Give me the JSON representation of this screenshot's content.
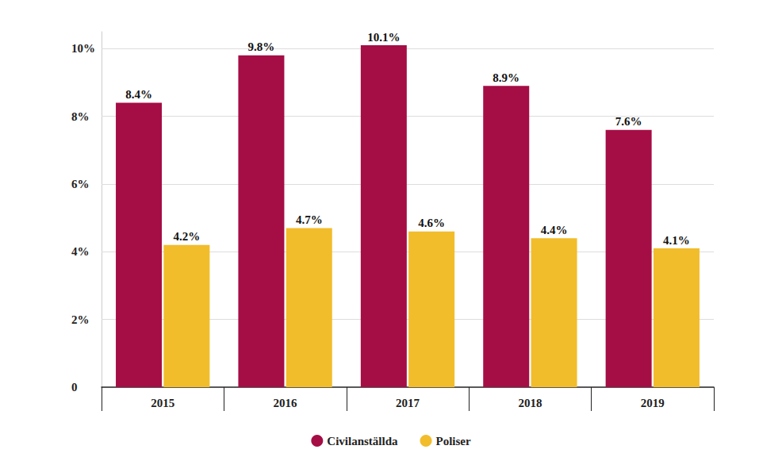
{
  "chart_data": {
    "type": "bar",
    "categories": [
      "2015",
      "2016",
      "2017",
      "2018",
      "2019"
    ],
    "series": [
      {
        "name": "Civilanställda",
        "color": "#a50d45",
        "values": [
          8.4,
          9.8,
          10.1,
          8.9,
          7.6
        ],
        "value_labels": [
          "8.4%",
          "9.8%",
          "10.1%",
          "8.9%",
          "7.6%"
        ]
      },
      {
        "name": "Poliser",
        "color": "#f2bd2b",
        "values": [
          4.2,
          4.7,
          4.6,
          4.4,
          4.1
        ],
        "value_labels": [
          "4.2%",
          "4.7%",
          "4.6%",
          "4.4%",
          "4.1%"
        ]
      }
    ],
    "ylim": [
      0,
      10.5
    ],
    "yticks": [
      0,
      {
        "value": 2,
        "label": "2%"
      },
      {
        "value": 4,
        "label": "4%"
      },
      {
        "value": 6,
        "label": "6%"
      },
      {
        "value": 8,
        "label": "8%"
      },
      {
        "value": 10,
        "label": "10%"
      }
    ],
    "grid": true,
    "legend": "bottom",
    "data_labels": true
  }
}
